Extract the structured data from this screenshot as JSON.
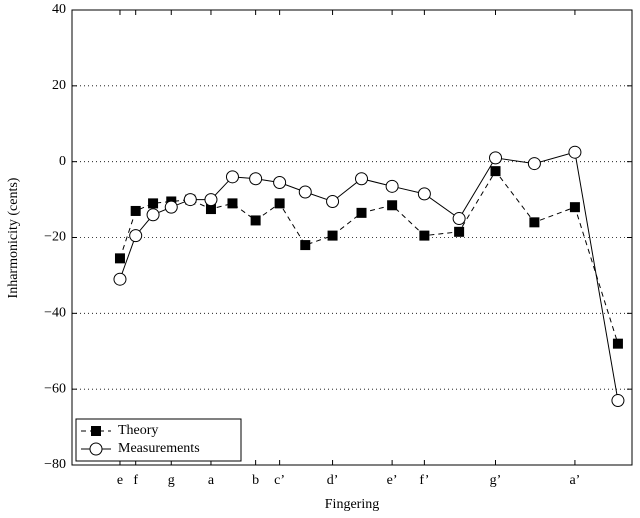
{
  "chart_data": {
    "type": "line",
    "xlabel": "Fingering",
    "ylabel": "Inharmonicity (cents)",
    "x": [
      330,
      349,
      370,
      392,
      415,
      440,
      466,
      494,
      523,
      554,
      587,
      622,
      659,
      698,
      740,
      784,
      831,
      880,
      932
    ],
    "series": [
      {
        "name": "Theory",
        "color": "#000000",
        "marker": "square",
        "linestyle": "dashed",
        "values": [
          -25.5,
          -13,
          -11,
          -10.5,
          -10,
          -12.5,
          -11,
          -15.5,
          -11,
          -22,
          -19.5,
          -13.5,
          -11.5,
          -19.5,
          -18.5,
          -2.5,
          -16,
          -12,
          -48
        ]
      },
      {
        "name": "Measurements",
        "color": "#000000",
        "marker": "circle",
        "linestyle": "solid",
        "values": [
          -31,
          -19.5,
          -14,
          -12,
          -10,
          -10,
          -4,
          -4.5,
          -5.5,
          -8,
          -10.5,
          -4.5,
          -6.5,
          -8.5,
          -15,
          1,
          -0.5,
          2.5,
          -63
        ]
      }
    ],
    "xlim": [
      272,
      949
    ],
    "xticks": [
      {
        "value": 330,
        "label": "e"
      },
      {
        "value": 349,
        "label": "f"
      },
      {
        "value": 392,
        "label": "g"
      },
      {
        "value": 440,
        "label": "a"
      },
      {
        "value": 494,
        "label": "b"
      },
      {
        "value": 523,
        "label": "c’"
      },
      {
        "value": 587,
        "label": "d’"
      },
      {
        "value": 659,
        "label": "e’"
      },
      {
        "value": 698,
        "label": "f’"
      },
      {
        "value": 784,
        "label": "g’"
      },
      {
        "value": 880,
        "label": "a’"
      }
    ],
    "ylim": [
      -80,
      40
    ],
    "yticks": [
      {
        "value": -80,
        "label": "−80"
      },
      {
        "value": -60,
        "label": "−60"
      },
      {
        "value": -40,
        "label": "−40"
      },
      {
        "value": -20,
        "label": "−20"
      },
      0,
      20,
      40
    ],
    "grid": true,
    "legend": "lower left"
  }
}
